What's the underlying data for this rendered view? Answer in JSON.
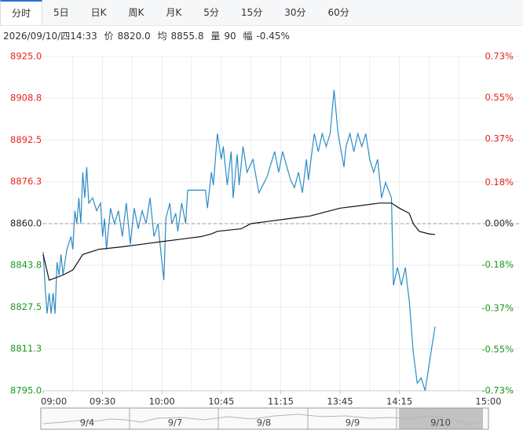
{
  "tabs": [
    "分时",
    "5日",
    "日K",
    "周K",
    "月K",
    "5分",
    "15分",
    "30分",
    "60分"
  ],
  "info": {
    "time": "2026/09/10/四14:33",
    "price_label": "价",
    "price": "8820.0",
    "avg_label": "均",
    "avg": "8855.8",
    "vol_label": "量",
    "vol": "90",
    "range_label": "幅",
    "range": "-0.45%"
  },
  "chart_data": {
    "type": "line",
    "up_color": "#e8231c",
    "down_color": "#1d9a1d",
    "flat_color": "#222222",
    "reference": 8860.0,
    "xlim": [
      0,
      225
    ],
    "xticks": [
      {
        "value": 0,
        "label": "09:00"
      },
      {
        "value": 30,
        "label": "09:30"
      },
      {
        "value": 60,
        "label": "10:00"
      },
      {
        "value": 90,
        "label": "10:45"
      },
      {
        "value": 120,
        "label": "11:15"
      },
      {
        "value": 150,
        "label": "13:45"
      },
      {
        "value": 180,
        "label": "14:15"
      },
      {
        "value": 225,
        "label": "15:00"
      }
    ],
    "ylim": [
      8795.0,
      8925.0
    ],
    "yticks": [
      {
        "value": 8925.0,
        "label": "8925.0"
      },
      {
        "value": 8908.8,
        "label": "8908.8"
      },
      {
        "value": 8892.5,
        "label": "8892.5"
      },
      {
        "value": 8876.3,
        "label": "8876.3"
      },
      {
        "value": 8860.0,
        "label": "8860.0"
      },
      {
        "value": 8843.8,
        "label": "8843.8"
      },
      {
        "value": 8827.5,
        "label": "8827.5"
      },
      {
        "value": 8811.3,
        "label": "8811.3"
      },
      {
        "value": 8795.0,
        "label": "8795.0"
      }
    ],
    "y2lim": [
      -0.73,
      0.73
    ],
    "y2ticks": [
      {
        "value": 0.73,
        "label": "0.73%"
      },
      {
        "value": 0.55,
        "label": "0.55%"
      },
      {
        "value": 0.37,
        "label": "0.37%"
      },
      {
        "value": 0.18,
        "label": "0.18%"
      },
      {
        "value": 0.0,
        "label": "0.00%"
      },
      {
        "value": -0.18,
        "label": "-0.18%"
      },
      {
        "value": -0.37,
        "label": "-0.37%"
      },
      {
        "value": -0.55,
        "label": "-0.55%"
      },
      {
        "value": -0.73,
        "label": "-0.73%"
      }
    ],
    "series": [
      {
        "color": "#2b8cc4",
        "x": [
          0,
          1,
          2,
          3,
          4,
          5,
          6,
          7,
          8,
          9,
          10,
          12,
          14,
          15,
          16,
          17,
          18,
          19,
          20,
          21,
          22,
          23,
          25,
          27,
          29,
          30,
          31,
          32,
          34,
          36,
          38,
          40,
          42,
          43,
          44,
          46,
          48,
          50,
          52,
          54,
          56,
          58,
          60,
          61,
          62,
          64,
          65,
          67,
          68,
          70,
          72,
          73,
          82,
          83,
          85,
          86,
          88,
          90,
          91,
          93,
          95,
          96,
          98,
          99,
          101,
          103,
          106,
          109,
          113,
          115,
          117,
          119,
          121,
          125,
          127,
          129,
          131,
          133,
          134,
          137,
          139,
          141,
          143,
          145,
          147,
          149,
          152,
          153,
          155,
          157,
          159,
          161,
          163,
          165,
          167,
          169,
          171,
          173,
          175,
          176,
          177,
          179,
          181,
          183,
          184,
          185,
          187,
          189,
          191,
          193,
          195,
          197,
          198
        ],
        "values": [
          8849,
          8835,
          8825,
          8833,
          8825,
          8833,
          8825,
          8845,
          8840,
          8848,
          8840,
          8850,
          8855,
          8850,
          8865,
          8860,
          8870,
          8860,
          8880,
          8870,
          8882,
          8868,
          8870,
          8865,
          8868,
          8855,
          8862,
          8850,
          8866,
          8860,
          8865,
          8855,
          8868,
          8860,
          8852,
          8866,
          8858,
          8865,
          8860,
          8870,
          8855,
          8860,
          8845,
          8838,
          8862,
          8868,
          8860,
          8864,
          8857,
          8868,
          8860,
          8873,
          8873,
          8866,
          8880,
          8875,
          8895,
          8885,
          8890,
          8875,
          8888,
          8870,
          8887,
          8875,
          8890,
          8880,
          8885,
          8872,
          8878,
          8883,
          8888,
          8880,
          8888,
          8877,
          8874,
          8880,
          8872,
          8885,
          8877,
          8895,
          8888,
          8895,
          8890,
          8895,
          8912,
          8895,
          8882,
          8890,
          8895,
          8888,
          8895,
          8890,
          8895,
          8885,
          8880,
          8885,
          8870,
          8876,
          8872,
          8870,
          8836,
          8843,
          8836,
          8843,
          8836,
          8830,
          8810,
          8798,
          8800,
          8795,
          8805,
          8815,
          8820
        ]
      },
      {
        "color": "#111111",
        "x": [
          0,
          3,
          10,
          15,
          20,
          28,
          40,
          50,
          60,
          70,
          80,
          85,
          88,
          100,
          105,
          115,
          125,
          135,
          145,
          150,
          160,
          170,
          176,
          180,
          185,
          187,
          190,
          195,
          198
        ],
        "values": [
          8848,
          8838,
          8840,
          8842,
          8848,
          8850,
          8851,
          8852,
          8853,
          8854,
          8855,
          8856,
          8857,
          8858,
          8860,
          8861,
          8862,
          8863,
          8865,
          8866,
          8867,
          8868,
          8868,
          8866,
          8864,
          8860,
          8857,
          8856,
          8855.8
        ]
      }
    ],
    "navigator": {
      "labels": [
        "9/4",
        "9/7",
        "9/8",
        "9/9",
        "9/10"
      ]
    }
  }
}
